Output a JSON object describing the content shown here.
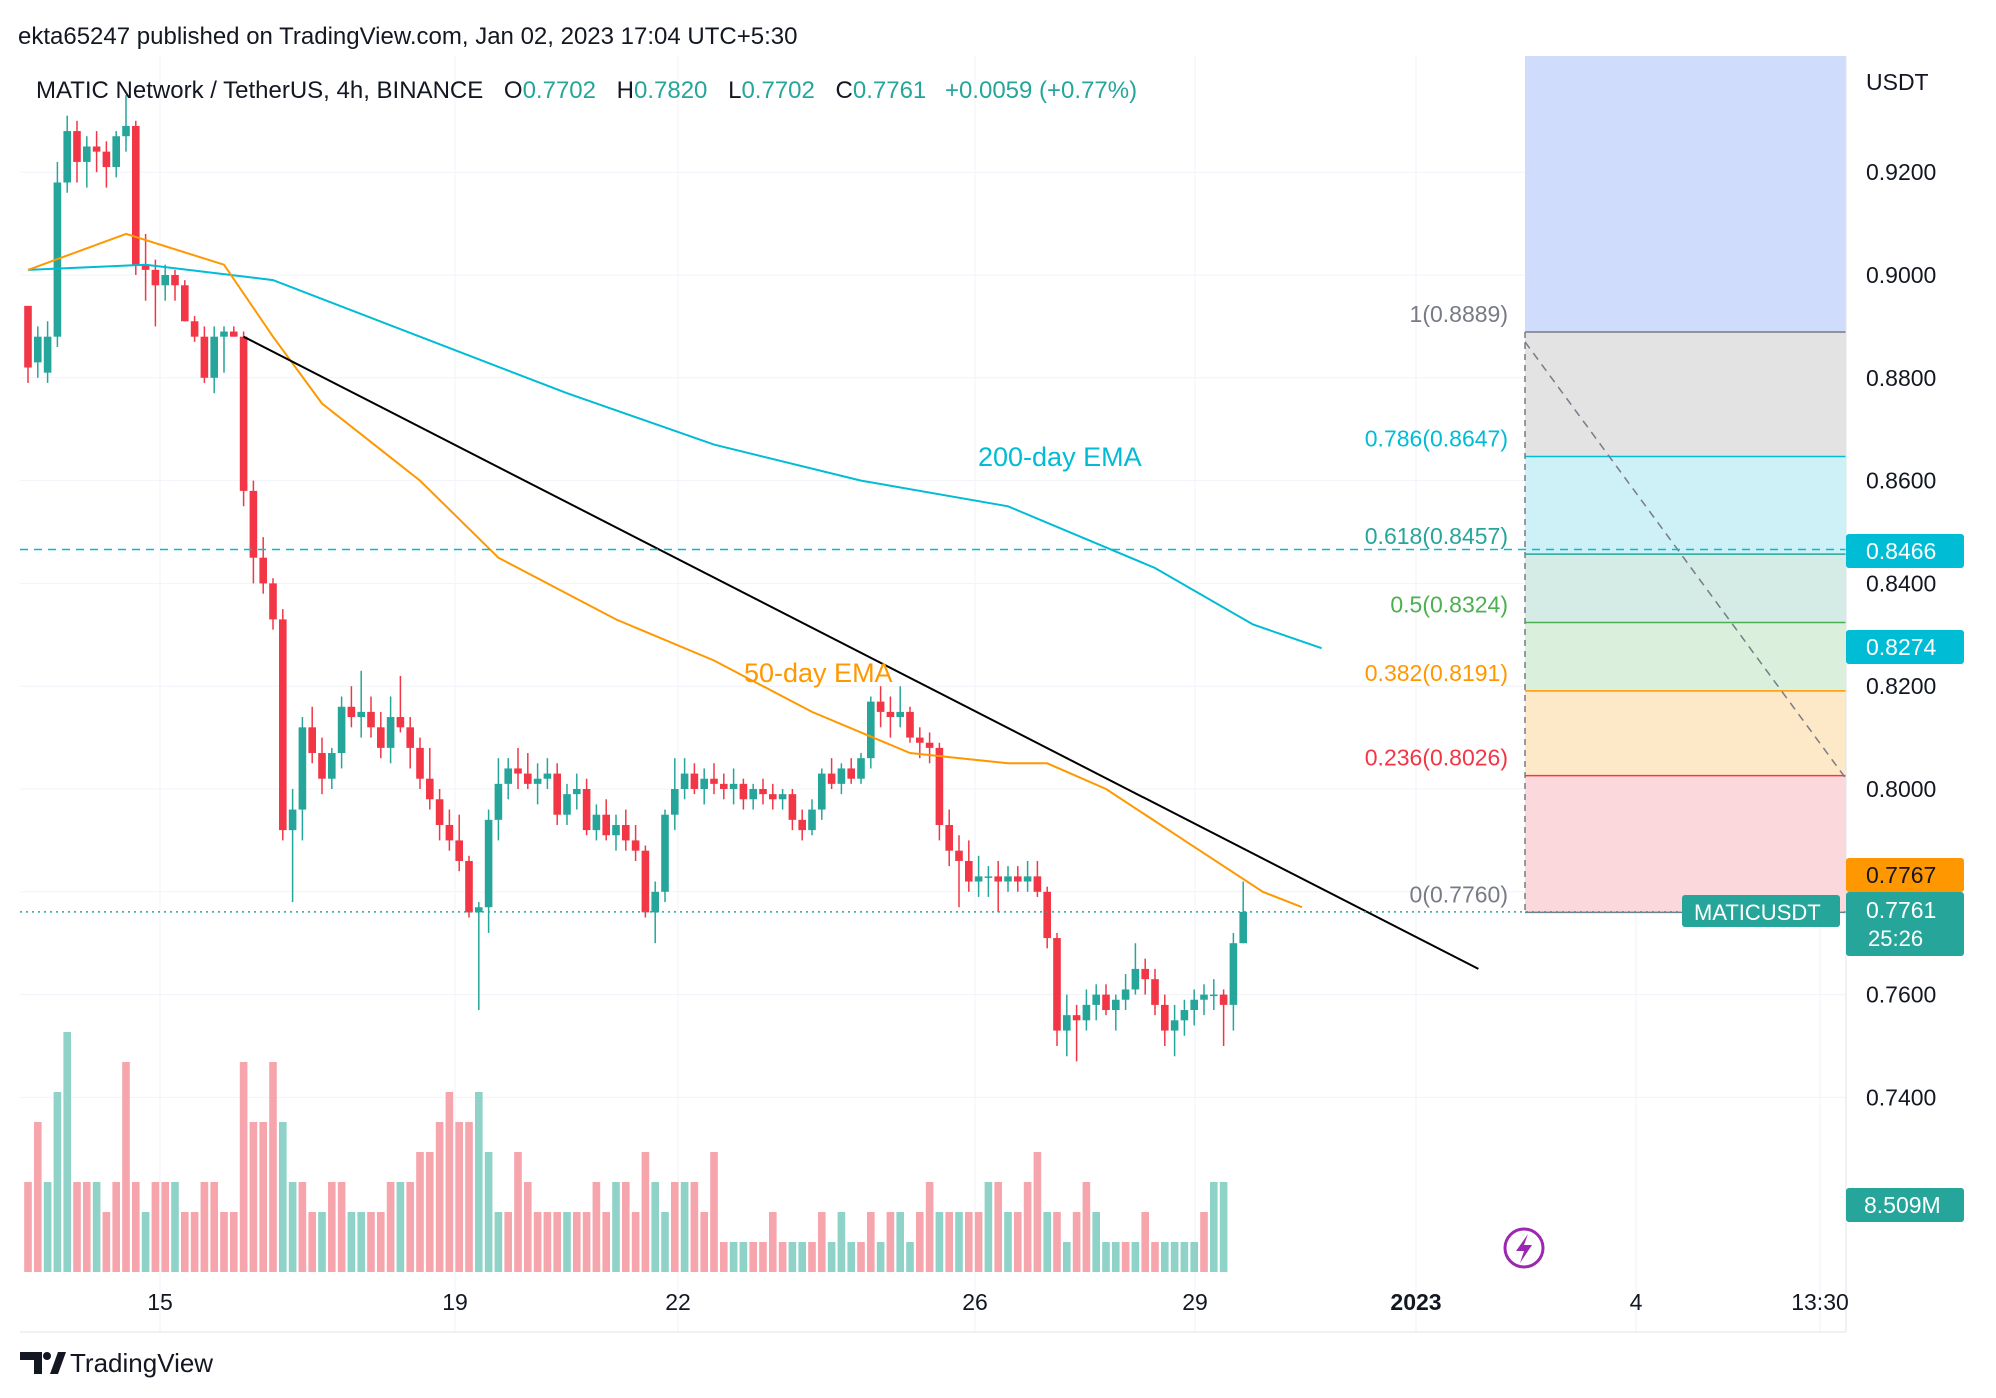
{
  "header": {
    "published": "ekta65247 published on TradingView.com, Jan 02, 2023 17:04 UTC+5:30"
  },
  "legend": {
    "symbol": "MATIC Network / TetherUS, 4h, BINANCE",
    "o_label": "O",
    "o_value": "0.7702",
    "h_label": "H",
    "h_value": "0.7820",
    "l_label": "L",
    "l_value": "0.7702",
    "c_label": "C",
    "c_value": "0.7761",
    "change": "+0.0059 (+0.77%)"
  },
  "axis": {
    "currency": "USDT",
    "ticks": [
      "0.9200",
      "0.9000",
      "0.8800",
      "0.8600",
      "0.8400",
      "0.8200",
      "0.8000",
      "0.7600",
      "0.7400"
    ],
    "tick_values": [
      0.92,
      0.9,
      0.88,
      0.86,
      0.84,
      0.82,
      0.8,
      0.76,
      0.74
    ],
    "time_labels": [
      "15",
      "19",
      "22",
      "26",
      "29",
      "2023",
      "4",
      "13:30"
    ]
  },
  "price_tags": {
    "ema200": "0.8466",
    "ema200_line": "0.8274",
    "orange": "0.7767",
    "last": "0.7761",
    "countdown": "25:26",
    "symbol": "MATICUSDT",
    "volume": "8.509M"
  },
  "labels": {
    "ema200": "200-day EMA",
    "ema50": "50-day EMA"
  },
  "fib": [
    {
      "label": "1(0.8889)",
      "value": 0.8889,
      "color": "#787b86",
      "fill": "#e3e3e3"
    },
    {
      "label": "0.786(0.8647)",
      "value": 0.8647,
      "color": "#00bcd4",
      "fill": "#cdf1f6"
    },
    {
      "label": "0.618(0.8457)",
      "value": 0.8457,
      "color": "#26a69a",
      "fill": "#d4ebe6"
    },
    {
      "label": "0.5(0.8324)",
      "value": 0.8324,
      "color": "#4caf50",
      "fill": "#dbf0dc"
    },
    {
      "label": "0.382(0.8191)",
      "value": 0.8191,
      "color": "#ff9800",
      "fill": "#fde8c8"
    },
    {
      "label": "0.236(0.8026)",
      "value": 0.8026,
      "color": "#f23645",
      "fill": "#fbd8dc"
    },
    {
      "label": "0(0.7760)",
      "value": 0.776,
      "color": "#787b86",
      "fill": ""
    }
  ],
  "colors": {
    "up": "#26a69a",
    "down": "#f23645",
    "ema50": "#ff9800",
    "ema200": "#00bcd4",
    "trend": "#000000",
    "fib_top": "#d0dcfb"
  },
  "footer": {
    "brand": "TradingView"
  },
  "chart_data": {
    "type": "candlestick",
    "title": "MATIC Network / TetherUS, 4h, BINANCE",
    "ylabel": "USDT",
    "ylim": [
      0.73,
      0.94
    ],
    "candles_ohlc": [
      [
        0.894,
        0.89,
        0.879,
        0.882
      ],
      [
        0.883,
        0.89,
        0.88,
        0.888
      ],
      [
        0.881,
        0.891,
        0.879,
        0.888
      ],
      [
        0.888,
        0.922,
        0.886,
        0.918
      ],
      [
        0.918,
        0.931,
        0.916,
        0.928
      ],
      [
        0.928,
        0.93,
        0.918,
        0.922
      ],
      [
        0.922,
        0.927,
        0.917,
        0.925
      ],
      [
        0.925,
        0.928,
        0.92,
        0.924
      ],
      [
        0.924,
        0.926,
        0.917,
        0.921
      ],
      [
        0.921,
        0.928,
        0.919,
        0.927
      ],
      [
        0.927,
        0.935,
        0.924,
        0.929
      ],
      [
        0.929,
        0.93,
        0.9,
        0.902
      ],
      [
        0.902,
        0.908,
        0.895,
        0.901
      ],
      [
        0.901,
        0.903,
        0.89,
        0.898
      ],
      [
        0.898,
        0.902,
        0.895,
        0.9
      ],
      [
        0.9,
        0.901,
        0.895,
        0.898
      ],
      [
        0.898,
        0.899,
        0.891,
        0.891
      ],
      [
        0.891,
        0.892,
        0.887,
        0.888
      ],
      [
        0.888,
        0.89,
        0.879,
        0.88
      ],
      [
        0.88,
        0.89,
        0.877,
        0.888
      ],
      [
        0.888,
        0.89,
        0.881,
        0.889
      ],
      [
        0.889,
        0.89,
        0.888,
        0.888
      ],
      [
        0.888,
        0.889,
        0.855,
        0.858
      ],
      [
        0.858,
        0.86,
        0.84,
        0.845
      ],
      [
        0.845,
        0.849,
        0.838,
        0.84
      ],
      [
        0.84,
        0.841,
        0.831,
        0.833
      ],
      [
        0.833,
        0.835,
        0.79,
        0.792
      ],
      [
        0.792,
        0.8,
        0.778,
        0.796
      ],
      [
        0.796,
        0.814,
        0.79,
        0.812
      ],
      [
        0.812,
        0.816,
        0.805,
        0.807
      ],
      [
        0.807,
        0.81,
        0.799,
        0.802
      ],
      [
        0.802,
        0.808,
        0.8,
        0.807
      ],
      [
        0.807,
        0.818,
        0.804,
        0.816
      ],
      [
        0.816,
        0.82,
        0.812,
        0.814
      ],
      [
        0.814,
        0.823,
        0.81,
        0.815
      ],
      [
        0.815,
        0.818,
        0.81,
        0.812
      ],
      [
        0.812,
        0.815,
        0.806,
        0.808
      ],
      [
        0.808,
        0.818,
        0.805,
        0.814
      ],
      [
        0.814,
        0.822,
        0.811,
        0.812
      ],
      [
        0.812,
        0.814,
        0.804,
        0.808
      ],
      [
        0.808,
        0.81,
        0.8,
        0.802
      ],
      [
        0.802,
        0.808,
        0.796,
        0.798
      ],
      [
        0.798,
        0.8,
        0.79,
        0.793
      ],
      [
        0.793,
        0.796,
        0.788,
        0.79
      ],
      [
        0.79,
        0.795,
        0.784,
        0.786
      ],
      [
        0.786,
        0.787,
        0.775,
        0.776
      ],
      [
        0.776,
        0.778,
        0.757,
        0.777
      ],
      [
        0.777,
        0.796,
        0.772,
        0.794
      ],
      [
        0.794,
        0.806,
        0.79,
        0.801
      ],
      [
        0.801,
        0.806,
        0.798,
        0.804
      ],
      [
        0.804,
        0.808,
        0.8,
        0.803
      ],
      [
        0.803,
        0.807,
        0.8,
        0.801
      ],
      [
        0.801,
        0.805,
        0.797,
        0.802
      ],
      [
        0.802,
        0.806,
        0.8,
        0.803
      ],
      [
        0.803,
        0.805,
        0.793,
        0.795
      ],
      [
        0.795,
        0.801,
        0.793,
        0.799
      ],
      [
        0.799,
        0.803,
        0.796,
        0.8
      ],
      [
        0.8,
        0.802,
        0.791,
        0.792
      ],
      [
        0.792,
        0.797,
        0.79,
        0.795
      ],
      [
        0.795,
        0.798,
        0.79,
        0.791
      ],
      [
        0.791,
        0.795,
        0.788,
        0.793
      ],
      [
        0.793,
        0.796,
        0.788,
        0.79
      ],
      [
        0.79,
        0.793,
        0.786,
        0.788
      ],
      [
        0.788,
        0.789,
        0.775,
        0.776
      ],
      [
        0.776,
        0.782,
        0.77,
        0.78
      ],
      [
        0.78,
        0.796,
        0.778,
        0.795
      ],
      [
        0.795,
        0.806,
        0.792,
        0.8
      ],
      [
        0.8,
        0.806,
        0.798,
        0.803
      ],
      [
        0.803,
        0.805,
        0.799,
        0.8
      ],
      [
        0.8,
        0.804,
        0.797,
        0.802
      ],
      [
        0.802,
        0.805,
        0.799,
        0.801
      ],
      [
        0.801,
        0.803,
        0.798,
        0.8
      ],
      [
        0.8,
        0.804,
        0.797,
        0.801
      ],
      [
        0.801,
        0.802,
        0.796,
        0.798
      ],
      [
        0.798,
        0.801,
        0.796,
        0.8
      ],
      [
        0.8,
        0.802,
        0.797,
        0.799
      ],
      [
        0.799,
        0.801,
        0.796,
        0.798
      ],
      [
        0.798,
        0.8,
        0.796,
        0.799
      ],
      [
        0.799,
        0.8,
        0.792,
        0.794
      ],
      [
        0.794,
        0.796,
        0.79,
        0.792
      ],
      [
        0.792,
        0.798,
        0.791,
        0.796
      ],
      [
        0.796,
        0.804,
        0.794,
        0.803
      ],
      [
        0.803,
        0.806,
        0.8,
        0.801
      ],
      [
        0.801,
        0.805,
        0.799,
        0.804
      ],
      [
        0.804,
        0.806,
        0.801,
        0.802
      ],
      [
        0.802,
        0.807,
        0.801,
        0.806
      ],
      [
        0.806,
        0.818,
        0.804,
        0.817
      ],
      [
        0.817,
        0.82,
        0.812,
        0.815
      ],
      [
        0.815,
        0.818,
        0.81,
        0.814
      ],
      [
        0.814,
        0.82,
        0.812,
        0.815
      ],
      [
        0.815,
        0.816,
        0.809,
        0.81
      ],
      [
        0.81,
        0.812,
        0.806,
        0.809
      ],
      [
        0.809,
        0.811,
        0.805,
        0.808
      ],
      [
        0.808,
        0.809,
        0.79,
        0.793
      ],
      [
        0.793,
        0.796,
        0.785,
        0.788
      ],
      [
        0.788,
        0.791,
        0.777,
        0.786
      ],
      [
        0.786,
        0.79,
        0.78,
        0.782
      ],
      [
        0.782,
        0.787,
        0.779,
        0.783
      ],
      [
        0.783,
        0.785,
        0.779,
        0.783
      ],
      [
        0.783,
        0.786,
        0.776,
        0.782
      ],
      [
        0.782,
        0.785,
        0.78,
        0.783
      ],
      [
        0.783,
        0.785,
        0.78,
        0.782
      ],
      [
        0.782,
        0.786,
        0.78,
        0.783
      ],
      [
        0.783,
        0.786,
        0.779,
        0.78
      ],
      [
        0.78,
        0.781,
        0.769,
        0.771
      ],
      [
        0.771,
        0.772,
        0.75,
        0.753
      ],
      [
        0.753,
        0.76,
        0.748,
        0.756
      ],
      [
        0.756,
        0.758,
        0.747,
        0.755
      ],
      [
        0.755,
        0.761,
        0.753,
        0.758
      ],
      [
        0.758,
        0.762,
        0.755,
        0.76
      ],
      [
        0.76,
        0.762,
        0.756,
        0.757
      ],
      [
        0.757,
        0.76,
        0.753,
        0.759
      ],
      [
        0.759,
        0.764,
        0.757,
        0.761
      ],
      [
        0.761,
        0.77,
        0.76,
        0.765
      ],
      [
        0.765,
        0.767,
        0.76,
        0.763
      ],
      [
        0.763,
        0.765,
        0.756,
        0.758
      ],
      [
        0.758,
        0.76,
        0.75,
        0.753
      ],
      [
        0.753,
        0.758,
        0.748,
        0.755
      ],
      [
        0.755,
        0.759,
        0.752,
        0.757
      ],
      [
        0.757,
        0.761,
        0.754,
        0.759
      ],
      [
        0.759,
        0.762,
        0.756,
        0.76
      ],
      [
        0.76,
        0.763,
        0.757,
        0.76
      ],
      [
        0.76,
        0.761,
        0.75,
        0.758
      ],
      [
        0.758,
        0.772,
        0.753,
        0.77
      ],
      [
        0.77,
        0.782,
        0.77,
        0.7761
      ]
    ],
    "volume": [
      [
        0.3,
        "d"
      ],
      [
        0.5,
        "d"
      ],
      [
        0.3,
        "u"
      ],
      [
        0.6,
        "u"
      ],
      [
        0.8,
        "u"
      ],
      [
        0.3,
        "d"
      ],
      [
        0.3,
        "d"
      ],
      [
        0.3,
        "u"
      ],
      [
        0.2,
        "d"
      ],
      [
        0.3,
        "d"
      ],
      [
        0.7,
        "d"
      ],
      [
        0.3,
        "d"
      ],
      [
        0.2,
        "u"
      ],
      [
        0.3,
        "d"
      ],
      [
        0.3,
        "d"
      ],
      [
        0.3,
        "u"
      ],
      [
        0.2,
        "d"
      ],
      [
        0.2,
        "d"
      ],
      [
        0.3,
        "d"
      ],
      [
        0.3,
        "d"
      ],
      [
        0.2,
        "d"
      ],
      [
        0.2,
        "d"
      ],
      [
        0.7,
        "d"
      ],
      [
        0.5,
        "d"
      ],
      [
        0.5,
        "d"
      ],
      [
        0.7,
        "d"
      ],
      [
        0.5,
        "u"
      ],
      [
        0.3,
        "u"
      ],
      [
        0.3,
        "d"
      ],
      [
        0.2,
        "d"
      ],
      [
        0.2,
        "u"
      ],
      [
        0.3,
        "d"
      ],
      [
        0.3,
        "d"
      ],
      [
        0.2,
        "u"
      ],
      [
        0.2,
        "u"
      ],
      [
        0.2,
        "d"
      ],
      [
        0.2,
        "d"
      ],
      [
        0.3,
        "d"
      ],
      [
        0.3,
        "u"
      ],
      [
        0.3,
        "d"
      ],
      [
        0.4,
        "d"
      ],
      [
        0.4,
        "d"
      ],
      [
        0.5,
        "d"
      ],
      [
        0.6,
        "d"
      ],
      [
        0.5,
        "d"
      ],
      [
        0.5,
        "d"
      ],
      [
        0.6,
        "u"
      ],
      [
        0.4,
        "u"
      ],
      [
        0.2,
        "u"
      ],
      [
        0.2,
        "d"
      ],
      [
        0.4,
        "d"
      ],
      [
        0.3,
        "d"
      ],
      [
        0.2,
        "d"
      ],
      [
        0.2,
        "d"
      ],
      [
        0.2,
        "d"
      ],
      [
        0.2,
        "u"
      ],
      [
        0.2,
        "d"
      ],
      [
        0.2,
        "d"
      ],
      [
        0.3,
        "d"
      ],
      [
        0.2,
        "d"
      ],
      [
        0.3,
        "u"
      ],
      [
        0.3,
        "d"
      ],
      [
        0.2,
        "d"
      ],
      [
        0.4,
        "d"
      ],
      [
        0.3,
        "u"
      ],
      [
        0.2,
        "u"
      ],
      [
        0.3,
        "d"
      ],
      [
        0.3,
        "u"
      ],
      [
        0.3,
        "d"
      ],
      [
        0.2,
        "d"
      ],
      [
        0.4,
        "d"
      ],
      [
        0.1,
        "d"
      ],
      [
        0.1,
        "u"
      ],
      [
        0.1,
        "u"
      ],
      [
        0.1,
        "d"
      ],
      [
        0.1,
        "d"
      ],
      [
        0.2,
        "d"
      ],
      [
        0.1,
        "d"
      ],
      [
        0.1,
        "u"
      ],
      [
        0.1,
        "u"
      ],
      [
        0.1,
        "d"
      ],
      [
        0.2,
        "d"
      ],
      [
        0.1,
        "u"
      ],
      [
        0.2,
        "u"
      ],
      [
        0.1,
        "u"
      ],
      [
        0.1,
        "d"
      ],
      [
        0.2,
        "d"
      ],
      [
        0.1,
        "u"
      ],
      [
        0.2,
        "d"
      ],
      [
        0.2,
        "u"
      ],
      [
        0.1,
        "u"
      ],
      [
        0.2,
        "d"
      ],
      [
        0.3,
        "d"
      ],
      [
        0.2,
        "u"
      ],
      [
        0.2,
        "d"
      ],
      [
        0.2,
        "u"
      ],
      [
        0.2,
        "d"
      ],
      [
        0.2,
        "d"
      ],
      [
        0.3,
        "u"
      ],
      [
        0.3,
        "d"
      ],
      [
        0.2,
        "u"
      ],
      [
        0.2,
        "d"
      ],
      [
        0.3,
        "d"
      ],
      [
        0.4,
        "d"
      ],
      [
        0.2,
        "u"
      ],
      [
        0.2,
        "d"
      ],
      [
        0.1,
        "u"
      ],
      [
        0.2,
        "d"
      ],
      [
        0.3,
        "d"
      ],
      [
        0.2,
        "u"
      ],
      [
        0.1,
        "u"
      ],
      [
        0.1,
        "u"
      ],
      [
        0.1,
        "d"
      ],
      [
        0.1,
        "u"
      ],
      [
        0.2,
        "d"
      ],
      [
        0.1,
        "d"
      ],
      [
        0.1,
        "u"
      ],
      [
        0.1,
        "u"
      ],
      [
        0.1,
        "u"
      ],
      [
        0.1,
        "u"
      ],
      [
        0.2,
        "d"
      ],
      [
        0.3,
        "u"
      ],
      [
        0.3,
        "u"
      ]
    ],
    "ema50": [
      [
        0,
        0.901
      ],
      [
        10,
        0.908
      ],
      [
        20,
        0.902
      ],
      [
        25,
        0.888
      ],
      [
        30,
        0.875
      ],
      [
        40,
        0.86
      ],
      [
        48,
        0.845
      ],
      [
        60,
        0.833
      ],
      [
        70,
        0.825
      ],
      [
        80,
        0.815
      ],
      [
        90,
        0.807
      ],
      [
        100,
        0.805
      ],
      [
        104,
        0.805
      ],
      [
        110,
        0.8
      ],
      [
        118,
        0.79
      ],
      [
        126,
        0.78
      ],
      [
        130,
        0.777
      ]
    ],
    "ema200": [
      [
        0,
        0.901
      ],
      [
        12,
        0.902
      ],
      [
        25,
        0.899
      ],
      [
        40,
        0.888
      ],
      [
        55,
        0.877
      ],
      [
        70,
        0.867
      ],
      [
        85,
        0.86
      ],
      [
        100,
        0.855
      ],
      [
        115,
        0.843
      ],
      [
        125,
        0.832
      ],
      [
        132,
        0.8274
      ]
    ],
    "trendline": [
      [
        22,
        0.888
      ],
      [
        148,
        0.765
      ]
    ],
    "last_price": 0.7761,
    "dashed_level": 0.8466
  }
}
